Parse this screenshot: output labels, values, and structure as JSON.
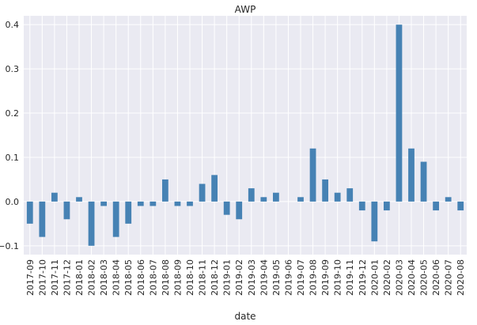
{
  "chart_data": {
    "type": "bar",
    "title": "AWP",
    "xlabel": "date",
    "ylabel": "",
    "ylim": [
      -0.12,
      0.42
    ],
    "yticks": [
      -0.1,
      0.0,
      0.1,
      0.2,
      0.3,
      0.4
    ],
    "ytick_labels": [
      "−0.1",
      "0.0",
      "0.1",
      "0.2",
      "0.3",
      "0.4"
    ],
    "grid": true,
    "background_color": "#eaeaf2",
    "bar_color": "#4682b4",
    "categories": [
      "2017-09",
      "2017-10",
      "2017-11",
      "2017-12",
      "2018-01",
      "2018-02",
      "2018-03",
      "2018-04",
      "2018-05",
      "2018-06",
      "2018-07",
      "2018-08",
      "2018-09",
      "2018-10",
      "2018-11",
      "2018-12",
      "2019-01",
      "2019-02",
      "2019-03",
      "2019-04",
      "2019-05",
      "2019-06",
      "2019-07",
      "2019-08",
      "2019-09",
      "2019-10",
      "2019-11",
      "2019-12",
      "2020-01",
      "2020-02",
      "2020-03",
      "2020-04",
      "2020-05",
      "2020-06",
      "2020-07",
      "2020-08"
    ],
    "values": [
      -0.05,
      -0.08,
      0.02,
      -0.04,
      0.01,
      -0.1,
      -0.01,
      -0.08,
      -0.05,
      -0.01,
      -0.01,
      0.05,
      -0.01,
      -0.01,
      0.04,
      0.06,
      -0.03,
      -0.04,
      0.03,
      0.01,
      0.02,
      0.0,
      0.01,
      0.12,
      0.05,
      0.02,
      0.03,
      -0.02,
      -0.09,
      -0.02,
      0.4,
      0.12,
      0.09,
      -0.02,
      0.01,
      -0.02
    ]
  }
}
